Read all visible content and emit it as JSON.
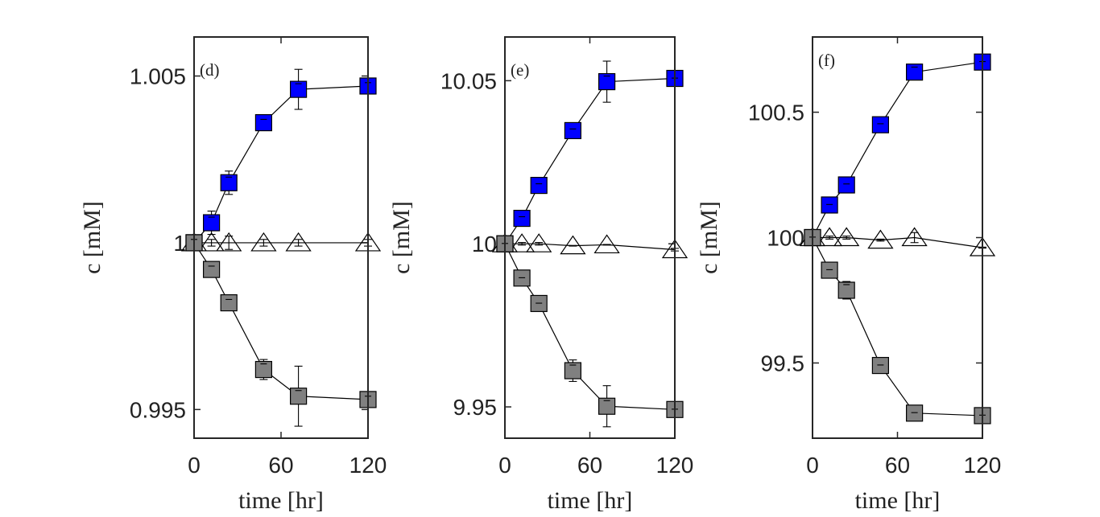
{
  "chart_data": [
    {
      "type": "line",
      "panel_label": "(d)",
      "xlabel": "time [hr]",
      "ylabel": "c [mM]",
      "xlim": [
        0,
        120
      ],
      "ylim": [
        0.99414,
        1.00617
      ],
      "xticks": [
        0,
        60,
        120
      ],
      "xtick_labels": [
        "0",
        "60",
        "120"
      ],
      "yticks": [
        0.995,
        1,
        1.005
      ],
      "ytick_labels": [
        "0.995",
        "1",
        "1.005"
      ],
      "x": [
        0,
        12,
        24,
        48,
        72,
        120
      ],
      "series": [
        {
          "name": "blue squares",
          "marker": "square",
          "color": "#0000ff",
          "values": [
            1.0,
            1.0006,
            1.0018,
            1.0036,
            1.0046,
            1.0047
          ],
          "errors": [
            0.0001,
            0.00035,
            0.00035,
            0.0001,
            0.0006,
            0.0001
          ]
        },
        {
          "name": "white triangles",
          "marker": "triangle",
          "color": "#ffffff",
          "values": [
            1.0,
            1.0,
            1.0,
            1.0,
            1.0,
            1.0
          ],
          "errors": [
            0.0001,
            0.0001,
            0.0002,
            0.0001,
            0.0001,
            0.0001
          ]
        },
        {
          "name": "gray squares",
          "marker": "square",
          "color": "#808080",
          "values": [
            1.0,
            0.9992,
            0.9982,
            0.9962,
            0.9954,
            0.9953
          ],
          "errors": [
            0.0001,
            0.0001,
            0.0001,
            0.0003,
            0.0009,
            0.0001
          ]
        }
      ]
    },
    {
      "type": "line",
      "panel_label": "(e)",
      "xlabel": "time [hr]",
      "ylabel": "c [mM]",
      "xlim": [
        0,
        120
      ],
      "ylim": [
        9.9404,
        10.0634
      ],
      "xticks": [
        0,
        60,
        120
      ],
      "xtick_labels": [
        "0",
        "60",
        "120"
      ],
      "yticks": [
        9.95,
        10,
        10.05
      ],
      "ytick_labels": [
        "9.95",
        "10",
        "10.05"
      ],
      "x": [
        0,
        12,
        24,
        48,
        72,
        120
      ],
      "series": [
        {
          "name": "blue squares",
          "marker": "square",
          "color": "#0000ff",
          "values": [
            10.0,
            10.0078,
            10.0179,
            10.0347,
            10.0497,
            10.0507
          ],
          "errors": [
            0.0001,
            0.0005,
            0.0005,
            0.0005,
            0.0063,
            0.0001
          ]
        },
        {
          "name": "white triangles",
          "marker": "triangle",
          "color": "#ffffff",
          "values": [
            10.0,
            10.0,
            10.0,
            9.9994,
            9.9997,
            9.9982
          ],
          "errors": [
            0.0004,
            0.0004,
            0.0004,
            0.0001,
            0.0001,
            0.0004
          ]
        },
        {
          "name": "gray squares",
          "marker": "square",
          "color": "#808080",
          "values": [
            10.0,
            9.9895,
            9.9817,
            9.9611,
            9.9502,
            9.9492
          ],
          "errors": [
            0.0001,
            0.0001,
            0.0001,
            0.0033,
            0.0063,
            0.0001
          ]
        }
      ]
    },
    {
      "type": "line",
      "panel_label": "(f)",
      "xlabel": "time [hr]",
      "ylabel": "c [mM]",
      "xlim": [
        0,
        120
      ],
      "ylim": [
        99.2,
        100.8
      ],
      "xticks": [
        0,
        60,
        120
      ],
      "xtick_labels": [
        "0",
        "60",
        "120"
      ],
      "yticks": [
        99.5,
        100,
        100.5
      ],
      "ytick_labels": [
        "99.5",
        "100",
        "100.5"
      ],
      "x": [
        0,
        12,
        24,
        48,
        72,
        120
      ],
      "series": [
        {
          "name": "blue squares",
          "marker": "square",
          "color": "#0000ff",
          "values": [
            100.0,
            100.13,
            100.21,
            100.45,
            100.66,
            100.7
          ],
          "errors": [
            0.002,
            0.002,
            0.004,
            0.004,
            0.02,
            0.002
          ]
        },
        {
          "name": "white triangles",
          "marker": "triangle",
          "color": "#ffffff",
          "values": [
            100.0,
            100.0,
            100.0,
            99.99,
            100.0,
            99.96
          ],
          "errors": [
            0.002,
            0.006,
            0.006,
            0.004,
            0.02,
            0.002
          ]
        },
        {
          "name": "gray squares",
          "marker": "square",
          "color": "#808080",
          "values": [
            100.0,
            99.87,
            99.79,
            99.49,
            99.3,
            99.29
          ],
          "errors": [
            0.002,
            0.002,
            0.035,
            0.002,
            0.002,
            0.002
          ]
        }
      ]
    }
  ]
}
